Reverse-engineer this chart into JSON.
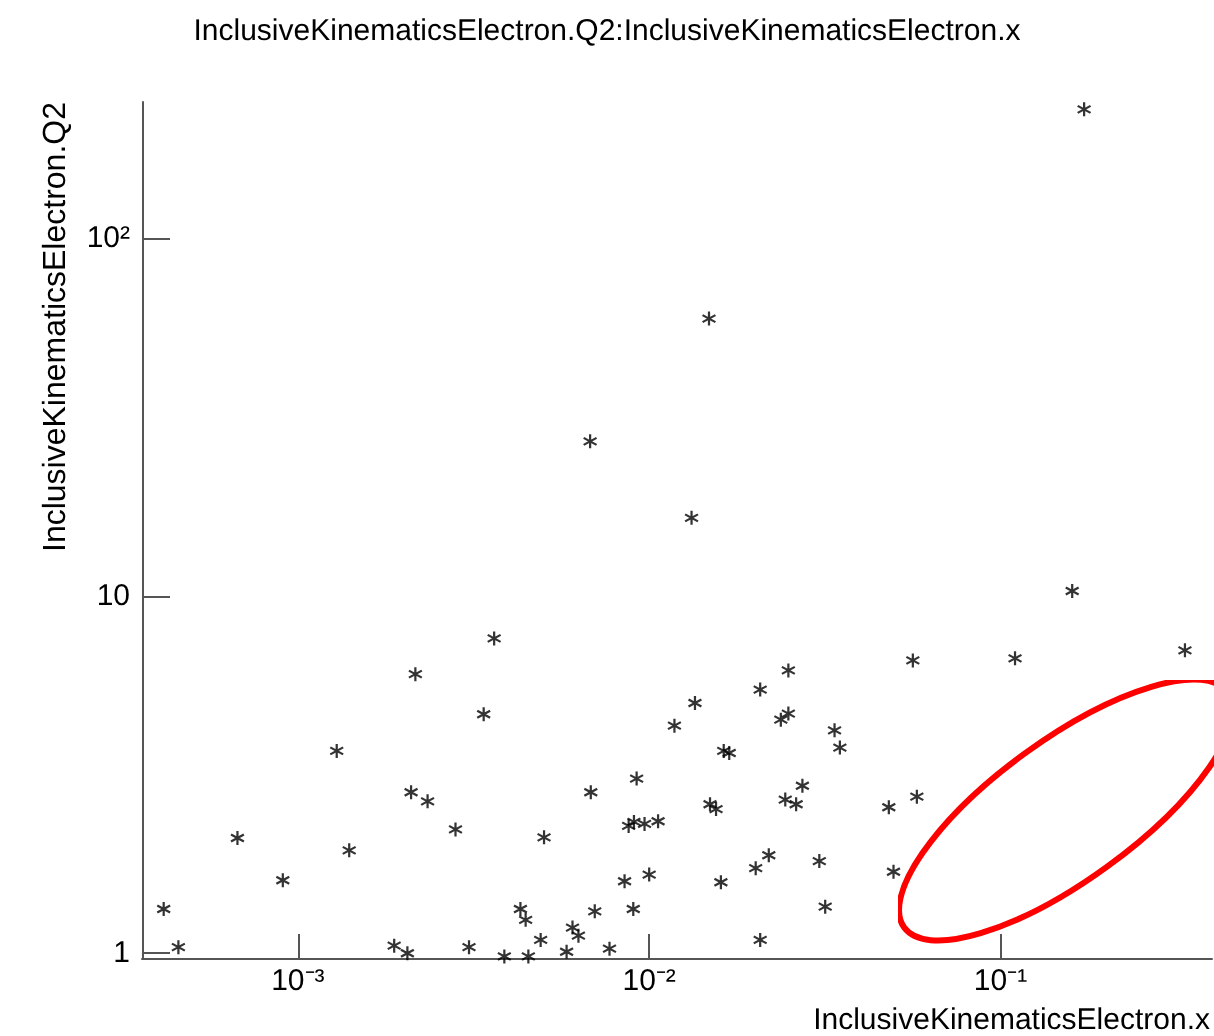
{
  "chart_data": {
    "type": "scatter",
    "title": "InclusiveKinematicsElectron.Q2:InclusiveKinematicsElectron.x",
    "xlabel": "InclusiveKinematicsElectron.x",
    "ylabel": "InclusiveKinematicsElectron.Q2",
    "log": "xy",
    "marker": "cross",
    "color": "#000000",
    "xlim": [
      0.00036,
      0.4
    ],
    "ylim": [
      0.97,
      240
    ],
    "xticks": [
      {
        "value": 0.001,
        "label": "10⁻³"
      },
      {
        "value": 0.01,
        "label": "10⁻²"
      },
      {
        "value": 0.1,
        "label": "10⁻¹"
      }
    ],
    "yticks": [
      1,
      10,
      {
        "value": 100,
        "label": "10²"
      }
    ],
    "x": [
      0.000415,
      0.000457,
      0.000673,
      0.000906,
      0.00129,
      0.0014,
      0.00188,
      0.00205,
      0.0021,
      0.00216,
      0.00234,
      0.00281,
      0.00307,
      0.00338,
      0.00362,
      0.00387,
      0.0043,
      0.00445,
      0.00453,
      0.00491,
      0.00502,
      0.00582,
      0.00605,
      0.00629,
      0.00682,
      0.007,
      0.00771,
      0.00851,
      0.00874,
      0.00901,
      0.00905,
      0.00921,
      0.0097,
      0.01,
      0.0106,
      0.0118,
      0.0135,
      0.0149,
      0.0155,
      0.016,
      0.0163,
      0.0169,
      0.0201,
      0.0207,
      0.0207,
      0.0219,
      0.0237,
      0.0244,
      0.0249,
      0.0249,
      0.0262,
      0.0273,
      0.0305,
      0.0317,
      0.0337,
      0.0349,
      0.0481,
      0.0496,
      0.0563,
      0.0578,
      0.11,
      0.335,
      0.00679,
      0.0132,
      0.0148,
      0.173,
      0.16
    ],
    "values": [
      1.33,
      1.04,
      2.1,
      1.6,
      3.68,
      1.94,
      1.05,
      1.0,
      2.82,
      6.03,
      2.66,
      2.22,
      1.04,
      4.66,
      7.59,
      0.98,
      1.33,
      1.24,
      0.98,
      1.09,
      2.11,
      1.01,
      1.18,
      1.12,
      2.82,
      1.31,
      1.03,
      1.59,
      2.27,
      1.33,
      2.33,
      3.08,
      2.3,
      1.66,
      2.34,
      4.33,
      5.01,
      2.61,
      2.53,
      1.58,
      3.68,
      3.63,
      1.73,
      1.09,
      5.46,
      1.88,
      4.5,
      2.69,
      4.68,
      6.18,
      2.61,
      2.94,
      1.81,
      1.35,
      4.2,
      3.76,
      2.56,
      1.69,
      6.59,
      2.74,
      6.68,
      7.03,
      27.0,
      16.5,
      59.5,
      229,
      10.3
    ]
  }
}
